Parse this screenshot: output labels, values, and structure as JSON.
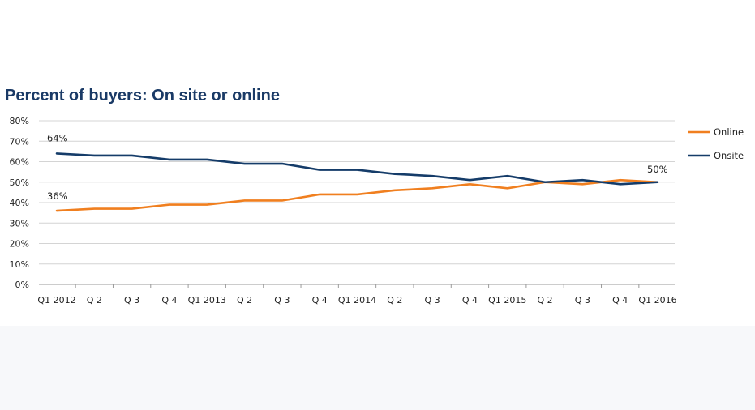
{
  "chart_data": {
    "type": "line",
    "title": "Percent of buyers: On site or online",
    "xlabel": "",
    "ylabel": "",
    "categories": [
      "Q1 2012",
      "Q 2",
      "Q 3",
      "Q 4",
      "Q1 2013",
      "Q 2",
      "Q 3",
      "Q 4",
      "Q1 2014",
      "Q 2",
      "Q 3",
      "Q 4",
      "Q1 2015",
      "Q 2",
      "Q 3",
      "Q 4",
      "Q1 2016"
    ],
    "ylim": [
      0,
      80
    ],
    "yticks": [
      "0%",
      "10%",
      "20%",
      "30%",
      "40%",
      "50%",
      "60%",
      "70%",
      "80%"
    ],
    "grid": true,
    "legend_position": "right",
    "series": [
      {
        "name": "Online",
        "color": "#f07f1f",
        "values": [
          36,
          37,
          37,
          39,
          39,
          41,
          41,
          44,
          44,
          46,
          47,
          49,
          47,
          50,
          49,
          51,
          50
        ]
      },
      {
        "name": "Onsite",
        "color": "#153c69",
        "values": [
          64,
          63,
          63,
          61,
          61,
          59,
          59,
          56,
          56,
          54,
          53,
          51,
          53,
          50,
          51,
          49,
          50
        ]
      }
    ],
    "annotations": [
      "64%",
      "36%",
      "50%"
    ]
  }
}
